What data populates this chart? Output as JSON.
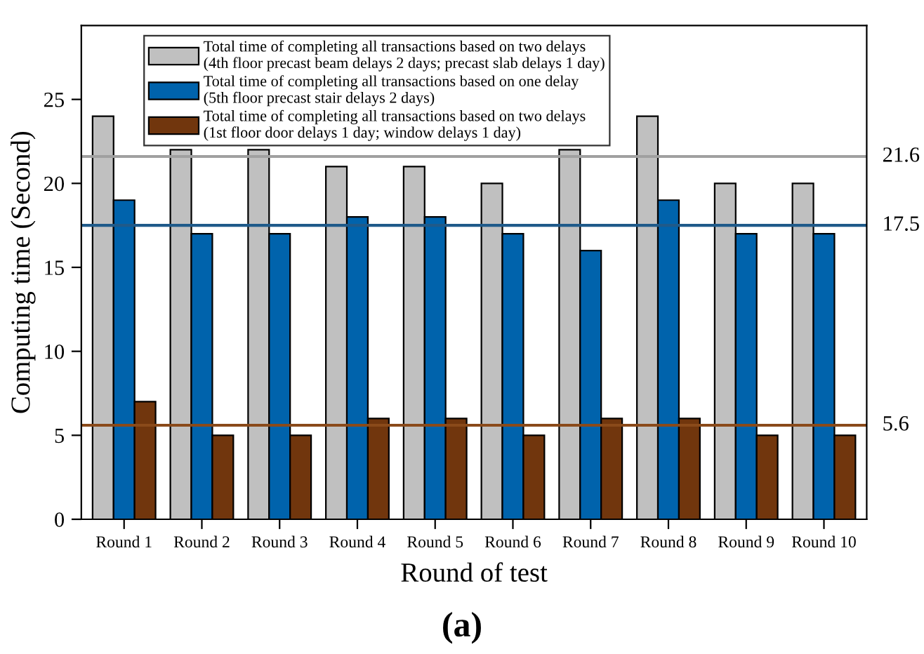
{
  "chart_data": {
    "type": "bar",
    "xlabel": "Round of test",
    "ylabel": "Computing time (Second)",
    "categories": [
      "Round 1",
      "Round 2",
      "Round 3",
      "Round 4",
      "Round 5",
      "Round 6",
      "Round 7",
      "Round 8",
      "Round 9",
      "Round 10"
    ],
    "series": [
      {
        "name": "Total time of completing all transactions based on two delays\n(4th floor precast beam delays 2 days; precast slab delays 1 day)",
        "color": "#c0c0c0",
        "values": [
          24,
          22,
          22,
          21,
          21,
          20,
          22,
          24,
          20,
          20
        ]
      },
      {
        "name": "Total time of completing all transactions based on one delay\n(5th floor precast stair delays 2 days)",
        "color": "#0063ac",
        "values": [
          19,
          17,
          17,
          18,
          18,
          17,
          16,
          19,
          17,
          17
        ]
      },
      {
        "name": "Total time of completing all transactions based on two delays\n(1st floor door delays 1 day; window delays 1 day)",
        "color": "#71360d",
        "values": [
          7,
          5,
          5,
          6,
          6,
          5,
          6,
          6,
          5,
          5
        ]
      }
    ],
    "ylim": [
      0,
      29.4
    ],
    "yticks": [
      0,
      5,
      10,
      15,
      20,
      25
    ],
    "ref_lines": [
      {
        "axis": "y",
        "value": 21.6,
        "label": "21.6",
        "color": "#a0a0a0"
      },
      {
        "axis": "y",
        "value": 17.5,
        "label": "17.5",
        "color": "#1f5a8a"
      },
      {
        "axis": "y",
        "value": 5.6,
        "label": "5.6",
        "color": "#8a4a1a"
      }
    ],
    "annotations": [
      "(a)"
    ],
    "legend": "top left",
    "grid": false
  }
}
